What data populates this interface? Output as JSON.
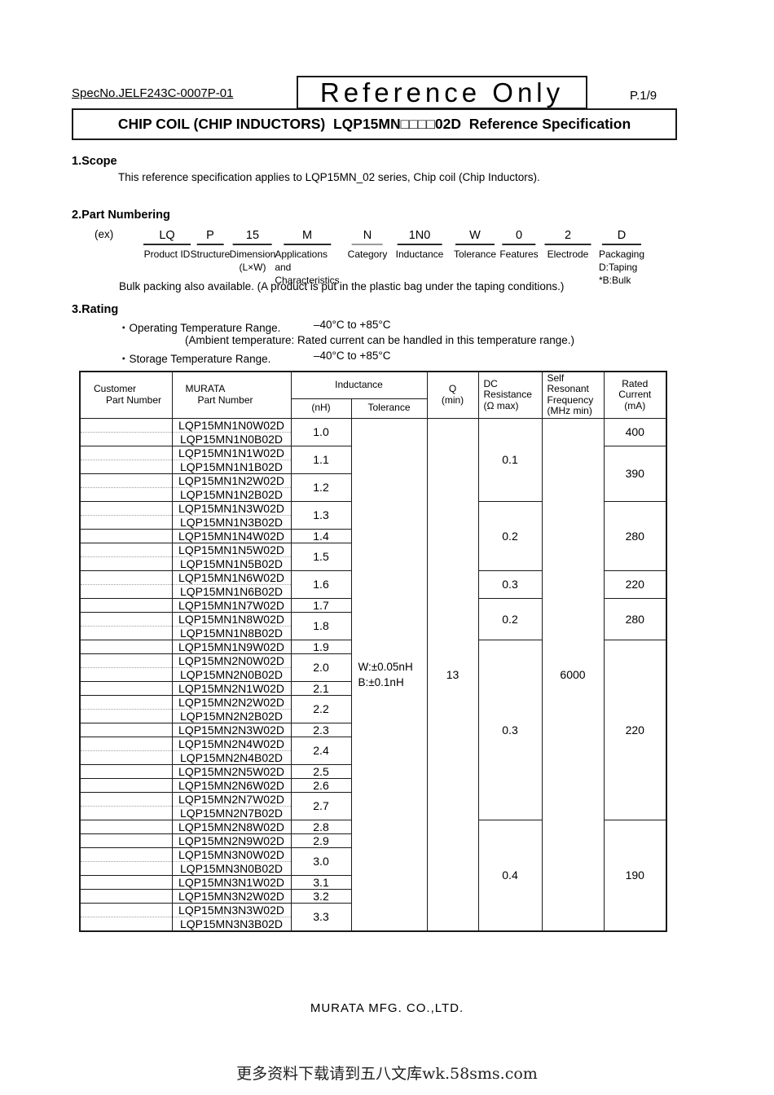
{
  "header": {
    "spec_no": "SpecNo.JELF243C-0007P-01",
    "stamp": "Reference Only",
    "page": "P.1/9",
    "title": "CHIP COIL (CHIP INDUCTORS)  LQP15MN□□□□02D  Reference Specification"
  },
  "scope": {
    "heading": "1.Scope",
    "body": "This reference specification applies to LQP15MN_02 series, Chip coil (Chip Inductors)."
  },
  "part_numbering": {
    "heading": "2.Part Numbering",
    "ex_label": "(ex)",
    "columns": [
      {
        "code": "LQ",
        "lines": [
          "Product ID"
        ]
      },
      {
        "code": "P",
        "lines": [
          "Structure"
        ]
      },
      {
        "code": "15",
        "lines": [
          "Dimension",
          "(L×W)"
        ]
      },
      {
        "code": "M",
        "lines": [
          "Applications",
          "and",
          "Characteristics"
        ]
      },
      {
        "code": "N",
        "lines": [
          "Category"
        ]
      },
      {
        "code": "1N0",
        "lines": [
          "Inductance"
        ]
      },
      {
        "code": "W",
        "lines": [
          "Tolerance"
        ]
      },
      {
        "code": "0",
        "lines": [
          "Features"
        ]
      },
      {
        "code": "2",
        "lines": [
          "Electrode"
        ]
      },
      {
        "code": "D",
        "lines": [
          "Packaging",
          "D:Taping",
          "*B:Bulk"
        ]
      }
    ],
    "note": "Bulk packing also available. (A product is put in the plastic bag under the taping conditions.)"
  },
  "rating": {
    "heading": "3.Rating",
    "operating_label": "・Operating Temperature Range.",
    "operating_value": "–40°C to +85°C",
    "ambient_note": "(Ambient temperature: Rated current can be handled in this temperature range.)",
    "storage_label": "・Storage Temperature Range.",
    "storage_value": "–40°C to +85°C"
  },
  "table": {
    "header": {
      "customer": [
        "Customer",
        "Part Number"
      ],
      "murata": [
        "MURATA",
        "Part Number"
      ],
      "inductance": "Inductance",
      "nh": "(nH)",
      "tolerance": "Tolerance",
      "q": [
        "Q",
        "(min)"
      ],
      "dc": [
        "DC",
        "Resistance",
        "(Ω  max)"
      ],
      "srf": [
        "Self",
        "Resonant",
        "Frequency",
        "(MHz min)"
      ],
      "rated": [
        "Rated",
        "Current",
        "(mA)"
      ]
    },
    "groups": [
      {
        "parts": [
          "LQP15MN1N0W02D",
          "LQP15MN1N0B02D"
        ],
        "l": "1.0"
      },
      {
        "parts": [
          "LQP15MN1N1W02D",
          "LQP15MN1N1B02D"
        ],
        "l": "1.1"
      },
      {
        "parts": [
          "LQP15MN1N2W02D",
          "LQP15MN1N2B02D"
        ],
        "l": "1.2"
      },
      {
        "parts": [
          "LQP15MN1N3W02D",
          "LQP15MN1N3B02D"
        ],
        "l": "1.3"
      },
      {
        "parts": [
          "LQP15MN1N4W02D"
        ],
        "l": "1.4"
      },
      {
        "parts": [
          "LQP15MN1N5W02D",
          "LQP15MN1N5B02D"
        ],
        "l": "1.5"
      },
      {
        "parts": [
          "LQP15MN1N6W02D",
          "LQP15MN1N6B02D"
        ],
        "l": "1.6"
      },
      {
        "parts": [
          "LQP15MN1N7W02D"
        ],
        "l": "1.7"
      },
      {
        "parts": [
          "LQP15MN1N8W02D",
          "LQP15MN1N8B02D"
        ],
        "l": "1.8"
      },
      {
        "parts": [
          "LQP15MN1N9W02D"
        ],
        "l": "1.9"
      },
      {
        "parts": [
          "LQP15MN2N0W02D",
          "LQP15MN2N0B02D"
        ],
        "l": "2.0"
      },
      {
        "parts": [
          "LQP15MN2N1W02D"
        ],
        "l": "2.1"
      },
      {
        "parts": [
          "LQP15MN2N2W02D",
          "LQP15MN2N2B02D"
        ],
        "l": "2.2"
      },
      {
        "parts": [
          "LQP15MN2N3W02D"
        ],
        "l": "2.3"
      },
      {
        "parts": [
          "LQP15MN2N4W02D",
          "LQP15MN2N4B02D"
        ],
        "l": "2.4"
      },
      {
        "parts": [
          "LQP15MN2N5W02D"
        ],
        "l": "2.5"
      },
      {
        "parts": [
          "LQP15MN2N6W02D"
        ],
        "l": "2.6"
      },
      {
        "parts": [
          "LQP15MN2N7W02D",
          "LQP15MN2N7B02D"
        ],
        "l": "2.7"
      },
      {
        "parts": [
          "LQP15MN2N8W02D"
        ],
        "l": "2.8"
      },
      {
        "parts": [
          "LQP15MN2N9W02D"
        ],
        "l": "2.9"
      },
      {
        "parts": [
          "LQP15MN3N0W02D",
          "LQP15MN3N0B02D"
        ],
        "l": "3.0"
      },
      {
        "parts": [
          "LQP15MN3N1W02D"
        ],
        "l": "3.1"
      },
      {
        "parts": [
          "LQP15MN3N2W02D"
        ],
        "l": "3.2"
      },
      {
        "parts": [
          "LQP15MN3N3W02D",
          "LQP15MN3N3B02D"
        ],
        "l": "3.3"
      }
    ],
    "tolerance_cell": [
      "W:±0.05nH",
      "B:±0.1nH"
    ],
    "q_value": "13",
    "srf_value": "6000",
    "dc_groups": [
      {
        "value": "0.1",
        "groups": 3
      },
      {
        "value": "0.2",
        "groups": 3
      },
      {
        "value": "0.3",
        "groups": 1
      },
      {
        "value": "0.2",
        "groups": 2
      },
      {
        "value": "0.3",
        "groups": 9
      },
      {
        "value": "0.4",
        "groups": 6
      }
    ],
    "rated_groups": [
      {
        "value": "400",
        "groups": 1
      },
      {
        "value": "390",
        "groups": 2
      },
      {
        "value": "280",
        "groups": 3
      },
      {
        "value": "220",
        "groups": 1
      },
      {
        "value": "280",
        "groups": 2
      },
      {
        "value": "220",
        "groups": 9
      },
      {
        "value": "190",
        "groups": 6
      }
    ]
  },
  "footer": {
    "company": "MURATA MFG. CO.,LTD.",
    "watermark": "更多资料下载请到五八文库wk.58sms.com"
  }
}
